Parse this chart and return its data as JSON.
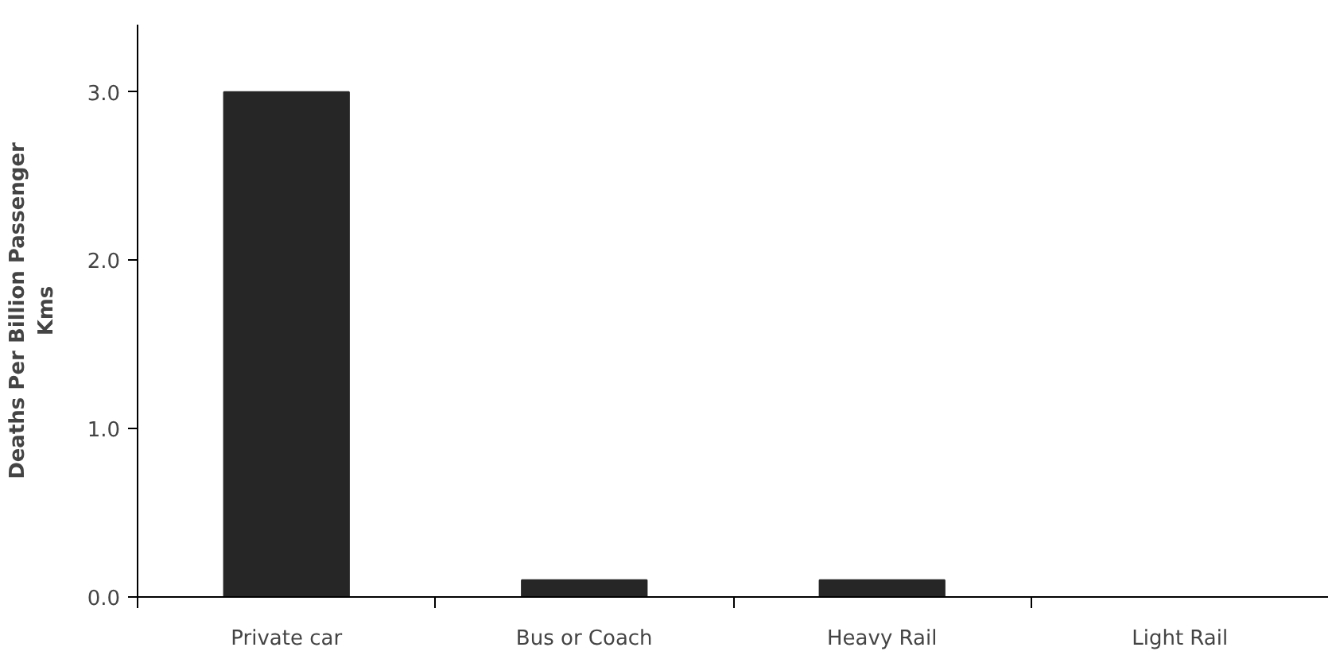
{
  "chart_data": {
    "type": "bar",
    "ylabel": "Deaths Per Billion Passenger Kms",
    "categories": [
      "Private car",
      "Bus or Coach",
      "Heavy Rail",
      "Light Rail"
    ],
    "values": [
      3.0,
      0.1,
      0.1,
      0
    ],
    "color": "#262626",
    "ylim": [
      0,
      3.4
    ],
    "yticks": [
      {
        "value": 0,
        "label": "0.0"
      },
      {
        "value": 1,
        "label": "1.0"
      },
      {
        "value": 2,
        "label": "2.0"
      },
      {
        "value": 3,
        "label": "3.0"
      }
    ],
    "grid": false
  }
}
